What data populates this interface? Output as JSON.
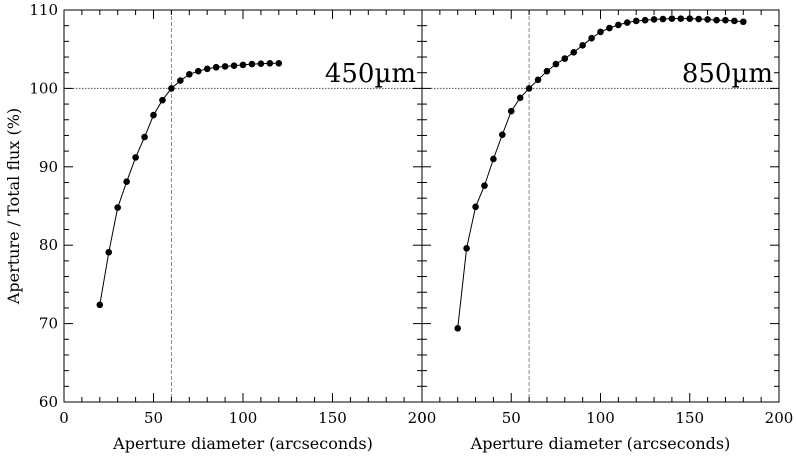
{
  "chart_data": {
    "type": "line",
    "ylabel": "Aperture / Total flux (%)",
    "ylim": [
      60,
      110
    ],
    "yticks": [
      60,
      70,
      80,
      90,
      100,
      110
    ],
    "reference_y": 100,
    "panels": [
      {
        "label": "450µm",
        "xlabel": "Aperture diameter (arcseconds)",
        "xlim": [
          0,
          200
        ],
        "xticks": [
          0,
          50,
          100,
          150,
          200
        ],
        "reference_x": 60,
        "series": [
          {
            "x": [
              20,
              25,
              30,
              35,
              40,
              45,
              50,
              55,
              60,
              65,
              70,
              75,
              80,
              85,
              90,
              95,
              100,
              105,
              110,
              115,
              120
            ],
            "y": [
              72.4,
              79.1,
              84.8,
              88.1,
              91.2,
              93.8,
              96.6,
              98.5,
              100.0,
              101.0,
              101.8,
              102.2,
              102.5,
              102.7,
              102.8,
              102.9,
              103.0,
              103.1,
              103.15,
              103.2,
              103.2
            ]
          }
        ]
      },
      {
        "label": "850µm",
        "xlabel": "Aperture diameter (arcseconds)",
        "xlim": [
          0,
          200
        ],
        "xticks": [
          0,
          50,
          100,
          150,
          200
        ],
        "reference_x": 60,
        "series": [
          {
            "x": [
              20,
              25,
              30,
              35,
              40,
              45,
              50,
              55,
              60,
              65,
              70,
              75,
              80,
              85,
              90,
              95,
              100,
              105,
              110,
              115,
              120,
              125,
              130,
              135,
              140,
              145,
              150,
              155,
              160,
              165,
              170,
              175,
              180
            ],
            "y": [
              69.4,
              79.6,
              84.9,
              87.6,
              91.0,
              94.1,
              97.1,
              98.8,
              100.0,
              101.1,
              102.2,
              103.1,
              103.8,
              104.6,
              105.5,
              106.4,
              107.2,
              107.7,
              108.1,
              108.4,
              108.6,
              108.7,
              108.8,
              108.85,
              108.9,
              108.9,
              108.9,
              108.85,
              108.8,
              108.7,
              108.7,
              108.6,
              108.5
            ]
          }
        ]
      }
    ]
  }
}
